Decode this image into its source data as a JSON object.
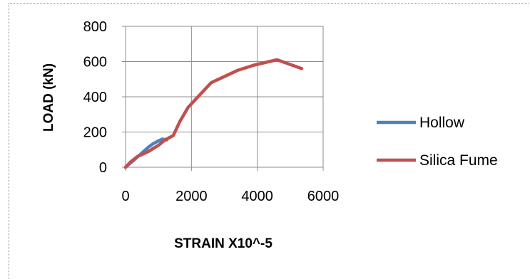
{
  "chart_data": {
    "type": "line",
    "title": "",
    "xlabel": "STRAIN X10^-5",
    "ylabel": "LOAD (kN)",
    "xlim": [
      0,
      6000
    ],
    "ylim": [
      0,
      800
    ],
    "xticks": [
      0,
      2000,
      4000,
      6000
    ],
    "yticks": [
      0,
      200,
      400,
      600,
      800
    ],
    "grid": true,
    "legend": "right",
    "series": [
      {
        "name": "Hollow",
        "color": "#4f81bd",
        "points": [
          [
            0,
            0
          ],
          [
            120,
            20
          ],
          [
            250,
            40
          ],
          [
            400,
            65
          ],
          [
            550,
            90
          ],
          [
            700,
            115
          ],
          [
            850,
            135
          ],
          [
            1000,
            150
          ],
          [
            1120,
            160
          ],
          [
            1250,
            155
          ]
        ]
      },
      {
        "name": "Silica Fume",
        "color": "#c0504d",
        "points": [
          [
            0,
            0
          ],
          [
            150,
            30
          ],
          [
            350,
            60
          ],
          [
            700,
            90
          ],
          [
            1000,
            125
          ],
          [
            1200,
            155
          ],
          [
            1450,
            180
          ],
          [
            1650,
            260
          ],
          [
            1900,
            340
          ],
          [
            2600,
            480
          ],
          [
            3400,
            550
          ],
          [
            3900,
            580
          ],
          [
            4600,
            610
          ],
          [
            5350,
            560
          ]
        ]
      }
    ]
  }
}
